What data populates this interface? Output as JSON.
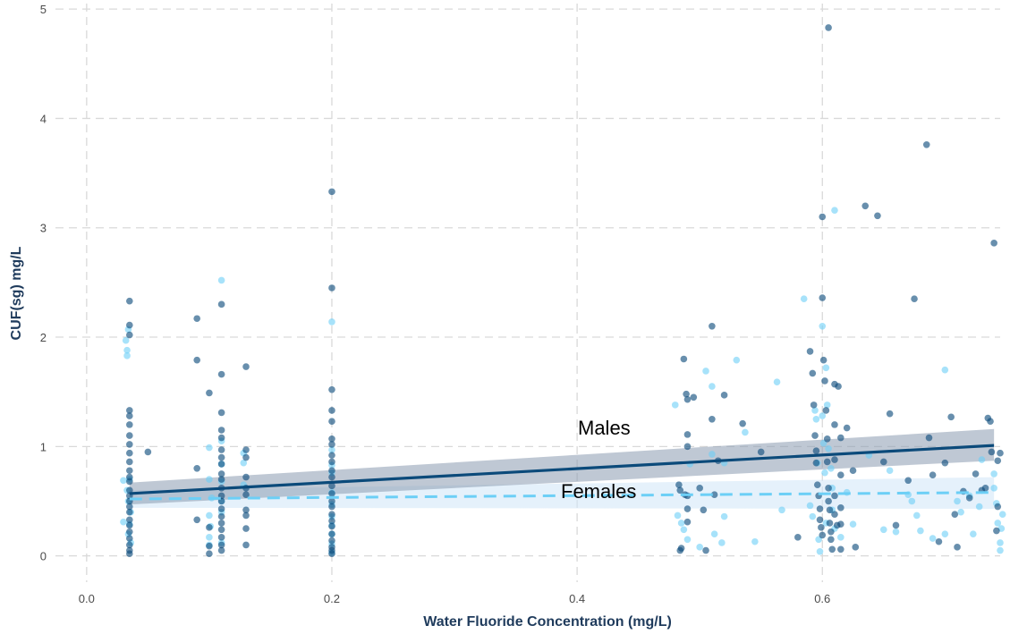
{
  "colors": {
    "males": "#0b4a7a",
    "females": "#6ccff6",
    "males_band": "#8a9bb0",
    "females_band": "#cfe6f7",
    "grid": "#d9d9d9"
  },
  "chart_data": {
    "type": "scatter",
    "xlabel": "Water Fluoride Concentration (mg/L)",
    "ylabel": "CUF(sg) mg/L",
    "xlim": [
      -0.04,
      0.745
    ],
    "ylim": [
      -0.24,
      5.05
    ],
    "x_ticks": [
      "0.0",
      "0.2",
      "0.4",
      "0.6"
    ],
    "x_tick_values": [
      0,
      0.2,
      0.4,
      0.6
    ],
    "y_ticks": [
      "0",
      "1",
      "2",
      "3",
      "4",
      "5"
    ],
    "y_tick_values": [
      0,
      1,
      2,
      3,
      4,
      5
    ],
    "grid": true,
    "annotations": [
      {
        "text": "Males",
        "x": 0.41,
        "y": 1.12
      },
      {
        "text": "Females",
        "x": 0.4,
        "y": 0.56
      }
    ],
    "series": [
      {
        "key": "males",
        "fit": {
          "x": [
            0.035,
            0.74
          ],
          "y": [
            0.57,
            1.01
          ],
          "band_lower": [
            0.47,
            0.87
          ],
          "band_upper": [
            0.67,
            1.16
          ]
        },
        "points": [
          [
            0.035,
            2.33
          ],
          [
            0.035,
            2.11
          ],
          [
            0.035,
            2.02
          ],
          [
            0.035,
            1.33
          ],
          [
            0.035,
            1.28
          ],
          [
            0.035,
            1.2
          ],
          [
            0.035,
            1.1
          ],
          [
            0.035,
            1.02
          ],
          [
            0.035,
            0.94
          ],
          [
            0.035,
            0.86
          ],
          [
            0.035,
            0.78
          ],
          [
            0.035,
            0.72
          ],
          [
            0.035,
            0.68
          ],
          [
            0.035,
            0.6
          ],
          [
            0.035,
            0.55
          ],
          [
            0.035,
            0.5
          ],
          [
            0.035,
            0.45
          ],
          [
            0.035,
            0.4
          ],
          [
            0.035,
            0.33
          ],
          [
            0.035,
            0.28
          ],
          [
            0.035,
            0.22
          ],
          [
            0.035,
            0.16
          ],
          [
            0.035,
            0.1
          ],
          [
            0.035,
            0.05
          ],
          [
            0.035,
            0.02
          ],
          [
            0.05,
            0.95
          ],
          [
            0.09,
            2.17
          ],
          [
            0.09,
            1.79
          ],
          [
            0.09,
            0.8
          ],
          [
            0.09,
            0.33
          ],
          [
            0.1,
            1.49
          ],
          [
            0.1,
            0.26
          ],
          [
            0.1,
            0.09
          ],
          [
            0.1,
            0.02
          ],
          [
            0.11,
            2.3
          ],
          [
            0.11,
            1.66
          ],
          [
            0.11,
            1.31
          ],
          [
            0.11,
            1.15
          ],
          [
            0.11,
            1.08
          ],
          [
            0.11,
            0.97
          ],
          [
            0.11,
            0.9
          ],
          [
            0.11,
            0.84
          ],
          [
            0.11,
            0.75
          ],
          [
            0.11,
            0.7
          ],
          [
            0.11,
            0.62
          ],
          [
            0.11,
            0.55
          ],
          [
            0.11,
            0.5
          ],
          [
            0.11,
            0.43
          ],
          [
            0.11,
            0.36
          ],
          [
            0.11,
            0.3
          ],
          [
            0.11,
            0.24
          ],
          [
            0.11,
            0.17
          ],
          [
            0.11,
            0.1
          ],
          [
            0.11,
            0.05
          ],
          [
            0.13,
            1.73
          ],
          [
            0.13,
            0.97
          ],
          [
            0.13,
            0.9
          ],
          [
            0.13,
            0.72
          ],
          [
            0.13,
            0.62
          ],
          [
            0.13,
            0.56
          ],
          [
            0.13,
            0.42
          ],
          [
            0.13,
            0.37
          ],
          [
            0.13,
            0.25
          ],
          [
            0.13,
            0.1
          ],
          [
            0.2,
            3.33
          ],
          [
            0.2,
            2.45
          ],
          [
            0.2,
            1.52
          ],
          [
            0.2,
            1.33
          ],
          [
            0.2,
            1.23
          ],
          [
            0.2,
            1.07
          ],
          [
            0.2,
            1.02
          ],
          [
            0.2,
            0.92
          ],
          [
            0.2,
            0.86
          ],
          [
            0.2,
            0.78
          ],
          [
            0.2,
            0.72
          ],
          [
            0.2,
            0.64
          ],
          [
            0.2,
            0.57
          ],
          [
            0.2,
            0.5
          ],
          [
            0.2,
            0.45
          ],
          [
            0.2,
            0.38
          ],
          [
            0.2,
            0.32
          ],
          [
            0.2,
            0.27
          ],
          [
            0.2,
            0.2
          ],
          [
            0.2,
            0.14
          ],
          [
            0.2,
            0.08
          ],
          [
            0.2,
            0.05
          ],
          [
            0.2,
            0.02
          ],
          [
            0.483,
            0.65
          ],
          [
            0.484,
            0.6
          ],
          [
            0.484,
            0.05
          ],
          [
            0.485,
            0.07
          ],
          [
            0.487,
            1.8
          ],
          [
            0.488,
            0.56
          ],
          [
            0.489,
            1.48
          ],
          [
            0.49,
            1.43
          ],
          [
            0.49,
            1.11
          ],
          [
            0.49,
            1.0
          ],
          [
            0.49,
            0.55
          ],
          [
            0.49,
            0.43
          ],
          [
            0.49,
            0.31
          ],
          [
            0.495,
            1.45
          ],
          [
            0.5,
            0.62
          ],
          [
            0.503,
            0.42
          ],
          [
            0.505,
            0.05
          ],
          [
            0.51,
            2.1
          ],
          [
            0.51,
            1.25
          ],
          [
            0.512,
            0.56
          ],
          [
            0.515,
            0.87
          ],
          [
            0.52,
            1.47
          ],
          [
            0.535,
            1.21
          ],
          [
            0.55,
            0.95
          ],
          [
            0.58,
            0.17
          ],
          [
            0.59,
            1.87
          ],
          [
            0.592,
            1.67
          ],
          [
            0.593,
            1.38
          ],
          [
            0.594,
            1.1
          ],
          [
            0.595,
            0.96
          ],
          [
            0.595,
            0.85
          ],
          [
            0.596,
            0.65
          ],
          [
            0.597,
            0.55
          ],
          [
            0.598,
            0.43
          ],
          [
            0.598,
            0.33
          ],
          [
            0.599,
            0.26
          ],
          [
            0.6,
            0.19
          ],
          [
            0.6,
            3.1
          ],
          [
            0.6,
            2.36
          ],
          [
            0.601,
            1.79
          ],
          [
            0.602,
            1.6
          ],
          [
            0.603,
            1.33
          ],
          [
            0.604,
            1.07
          ],
          [
            0.604,
            0.86
          ],
          [
            0.605,
            0.62
          ],
          [
            0.605,
            0.5
          ],
          [
            0.606,
            0.42
          ],
          [
            0.606,
            0.3
          ],
          [
            0.607,
            0.22
          ],
          [
            0.607,
            0.15
          ],
          [
            0.608,
            0.06
          ],
          [
            0.605,
            4.83
          ],
          [
            0.61,
            1.57
          ],
          [
            0.61,
            1.2
          ],
          [
            0.61,
            0.88
          ],
          [
            0.61,
            0.55
          ],
          [
            0.61,
            0.38
          ],
          [
            0.612,
            0.28
          ],
          [
            0.613,
            1.55
          ],
          [
            0.615,
            1.08
          ],
          [
            0.615,
            0.74
          ],
          [
            0.615,
            0.44
          ],
          [
            0.615,
            0.29
          ],
          [
            0.615,
            0.06
          ],
          [
            0.62,
            1.17
          ],
          [
            0.625,
            0.78
          ],
          [
            0.627,
            0.08
          ],
          [
            0.635,
            3.2
          ],
          [
            0.645,
            3.11
          ],
          [
            0.65,
            0.86
          ],
          [
            0.655,
            1.3
          ],
          [
            0.66,
            0.28
          ],
          [
            0.67,
            0.69
          ],
          [
            0.675,
            2.35
          ],
          [
            0.685,
            3.76
          ],
          [
            0.687,
            1.08
          ],
          [
            0.69,
            0.74
          ],
          [
            0.695,
            0.13
          ],
          [
            0.7,
            0.85
          ],
          [
            0.705,
            1.27
          ],
          [
            0.708,
            0.38
          ],
          [
            0.71,
            0.08
          ],
          [
            0.715,
            0.59
          ],
          [
            0.72,
            0.53
          ],
          [
            0.725,
            0.75
          ],
          [
            0.73,
            0.6
          ],
          [
            0.733,
            0.62
          ],
          [
            0.735,
            1.26
          ],
          [
            0.737,
            1.23
          ],
          [
            0.738,
            0.95
          ],
          [
            0.74,
            2.86
          ],
          [
            0.742,
            0.23
          ],
          [
            0.743,
            0.45
          ],
          [
            0.743,
            0.87
          ],
          [
            0.745,
            0.94
          ]
        ]
      },
      {
        "key": "females",
        "fit": {
          "x": [
            0.035,
            0.74
          ],
          "y": [
            0.52,
            0.58
          ],
          "band_lower": [
            0.44,
            0.43
          ],
          "band_upper": [
            0.6,
            0.72
          ]
        },
        "points": [
          [
            0.032,
            1.97
          ],
          [
            0.033,
            1.88
          ],
          [
            0.033,
            1.83
          ],
          [
            0.034,
            2.07
          ],
          [
            0.035,
            0.7
          ],
          [
            0.033,
            0.6
          ],
          [
            0.034,
            0.5
          ],
          [
            0.036,
            0.4
          ],
          [
            0.035,
            0.29
          ],
          [
            0.034,
            0.2
          ],
          [
            0.036,
            0.12
          ],
          [
            0.03,
            0.69
          ],
          [
            0.03,
            0.31
          ],
          [
            0.1,
            0.99
          ],
          [
            0.1,
            0.7
          ],
          [
            0.102,
            0.53
          ],
          [
            0.1,
            0.37
          ],
          [
            0.101,
            0.27
          ],
          [
            0.1,
            0.17
          ],
          [
            0.1,
            0.1
          ],
          [
            0.11,
            2.52
          ],
          [
            0.11,
            1.05
          ],
          [
            0.11,
            0.84
          ],
          [
            0.11,
            0.68
          ],
          [
            0.11,
            0.5
          ],
          [
            0.11,
            0.4
          ],
          [
            0.11,
            0.12
          ],
          [
            0.128,
            0.94
          ],
          [
            0.128,
            0.85
          ],
          [
            0.128,
            0.65
          ],
          [
            0.2,
            2.14
          ],
          [
            0.2,
            0.97
          ],
          [
            0.2,
            0.83
          ],
          [
            0.2,
            0.76
          ],
          [
            0.2,
            0.58
          ],
          [
            0.2,
            0.47
          ],
          [
            0.2,
            0.36
          ],
          [
            0.2,
            0.28
          ],
          [
            0.2,
            0.2
          ],
          [
            0.2,
            0.11
          ],
          [
            0.2,
            0.03
          ],
          [
            0.48,
            1.38
          ],
          [
            0.482,
            0.37
          ],
          [
            0.485,
            0.3
          ],
          [
            0.487,
            0.24
          ],
          [
            0.49,
            0.15
          ],
          [
            0.492,
            0.84
          ],
          [
            0.5,
            0.08
          ],
          [
            0.505,
            1.69
          ],
          [
            0.51,
            1.55
          ],
          [
            0.51,
            0.93
          ],
          [
            0.512,
            0.2
          ],
          [
            0.518,
            0.12
          ],
          [
            0.52,
            0.85
          ],
          [
            0.52,
            0.36
          ],
          [
            0.53,
            1.79
          ],
          [
            0.537,
            1.13
          ],
          [
            0.545,
            0.13
          ],
          [
            0.563,
            1.59
          ],
          [
            0.567,
            0.42
          ],
          [
            0.585,
            2.35
          ],
          [
            0.59,
            0.46
          ],
          [
            0.592,
            0.36
          ],
          [
            0.594,
            1.33
          ],
          [
            0.595,
            1.25
          ],
          [
            0.596,
            0.85
          ],
          [
            0.597,
            0.15
          ],
          [
            0.598,
            0.04
          ],
          [
            0.6,
            2.1
          ],
          [
            0.6,
            1.28
          ],
          [
            0.601,
            1.03
          ],
          [
            0.602,
            0.76
          ],
          [
            0.603,
            0.3
          ],
          [
            0.603,
            1.72
          ],
          [
            0.604,
            1.38
          ],
          [
            0.605,
            0.98
          ],
          [
            0.607,
            0.8
          ],
          [
            0.608,
            0.62
          ],
          [
            0.608,
            0.42
          ],
          [
            0.61,
            3.16
          ],
          [
            0.61,
            0.25
          ],
          [
            0.615,
            0.17
          ],
          [
            0.62,
            0.58
          ],
          [
            0.625,
            0.29
          ],
          [
            0.638,
            0.92
          ],
          [
            0.65,
            0.24
          ],
          [
            0.655,
            0.78
          ],
          [
            0.66,
            0.22
          ],
          [
            0.67,
            0.56
          ],
          [
            0.673,
            0.5
          ],
          [
            0.677,
            0.37
          ],
          [
            0.68,
            0.23
          ],
          [
            0.69,
            0.16
          ],
          [
            0.7,
            0.2
          ],
          [
            0.7,
            1.7
          ],
          [
            0.71,
            0.5
          ],
          [
            0.713,
            0.4
          ],
          [
            0.72,
            0.55
          ],
          [
            0.723,
            0.2
          ],
          [
            0.728,
            0.45
          ],
          [
            0.73,
            0.88
          ],
          [
            0.74,
            0.75
          ],
          [
            0.74,
            0.62
          ],
          [
            0.742,
            0.48
          ],
          [
            0.743,
            0.3
          ],
          [
            0.745,
            0.12
          ],
          [
            0.745,
            0.05
          ],
          [
            0.746,
            0.25
          ],
          [
            0.747,
            0.38
          ]
        ]
      }
    ]
  }
}
